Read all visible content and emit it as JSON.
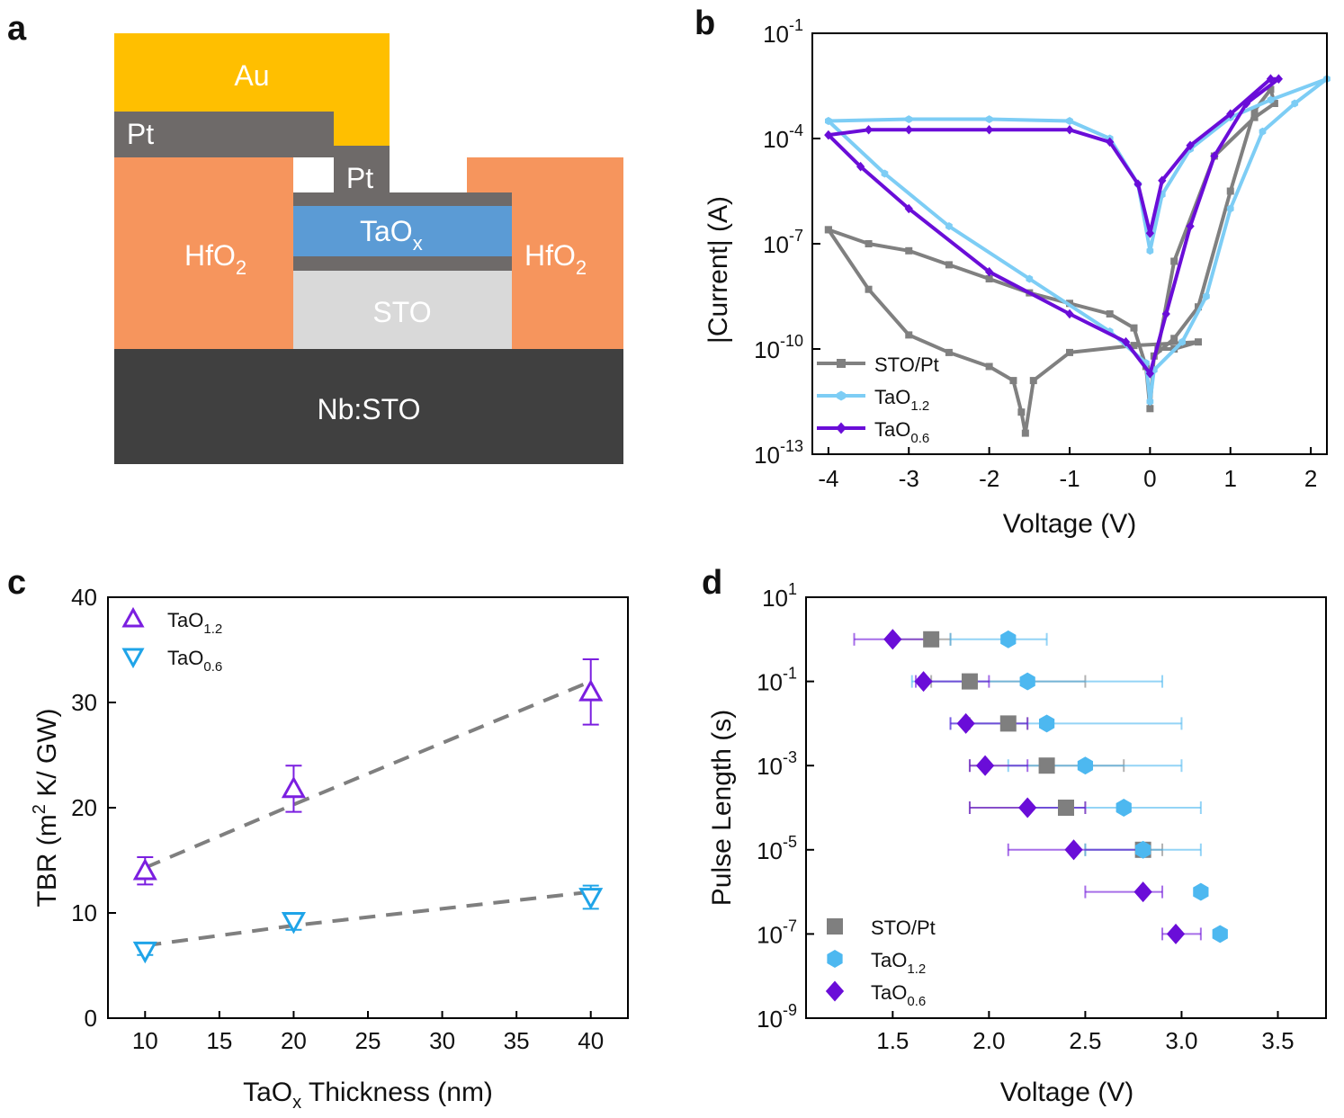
{
  "panel_labels": [
    "a",
    "b",
    "c",
    "d"
  ],
  "diagram": {
    "layers": {
      "au": "Au",
      "pt_top": "Pt",
      "pt_mid": "Pt",
      "hfo2_left": "HfO",
      "hfo2_right": "HfO",
      "hfo2_sub": "2",
      "taox": "TaO",
      "taox_sub": "x",
      "sto": "STO",
      "nbsto": "Nb:STO"
    },
    "colors": {
      "au": "#FFBF00",
      "pt": "#6E6A69",
      "hfo2": "#F6955D",
      "taox": "#5B9BD5",
      "sto": "#D9D9D9",
      "nbsto": "#404040"
    }
  },
  "chart_data": [
    {
      "id": "b",
      "type": "line",
      "xlabel": "Voltage (V)",
      "ylabel": "|Current| (A)",
      "xlim": [
        -4.2,
        2.2
      ],
      "ylim_log10": [
        -13,
        -1
      ],
      "xticks": [
        "-4",
        "-3",
        "-2",
        "-1",
        "0",
        "1",
        "2"
      ],
      "yticks": [
        {
          "base": "10",
          "exp": "-1"
        },
        {
          "base": "10",
          "exp": "-4"
        },
        {
          "base": "10",
          "exp": "-7"
        },
        {
          "base": "10",
          "exp": "-10"
        },
        {
          "base": "10",
          "exp": "-13"
        }
      ],
      "legend": [
        {
          "label": "STO/Pt",
          "sub": ""
        },
        {
          "label": "TaO",
          "sub": "1.2"
        },
        {
          "label": "TaO",
          "sub": "0.6"
        }
      ],
      "series": [
        {
          "name": "STO/Pt",
          "color": "#808080",
          "points": [
            [
              -4,
              -6.6
            ],
            [
              -3.5,
              -7.0
            ],
            [
              -3,
              -7.2
            ],
            [
              -2.5,
              -7.6
            ],
            [
              -2,
              -8.0
            ],
            [
              -1.5,
              -8.4
            ],
            [
              -1,
              -8.7
            ],
            [
              -0.5,
              -9.0
            ],
            [
              -0.2,
              -9.4
            ],
            [
              -0.05,
              -10.5
            ],
            [
              0,
              -11.7
            ],
            [
              0.05,
              -10.2
            ],
            [
              0.3,
              -9.7
            ],
            [
              0.6,
              -8.8
            ],
            [
              1.0,
              -5.5
            ],
            [
              1.3,
              -3.2
            ],
            [
              1.5,
              -2.6
            ],
            [
              1.55,
              -3.0
            ],
            [
              1.3,
              -3.4
            ],
            [
              0.8,
              -4.5
            ],
            [
              0.3,
              -7.5
            ],
            [
              0.1,
              -10.0
            ],
            [
              0.3,
              -10.0
            ],
            [
              0.6,
              -9.8
            ],
            [
              -0.2,
              -9.9
            ],
            [
              -1,
              -10.1
            ],
            [
              -1.45,
              -10.9
            ],
            [
              -1.55,
              -12.4
            ],
            [
              -1.6,
              -11.8
            ],
            [
              -1.7,
              -10.9
            ],
            [
              -2,
              -10.5
            ],
            [
              -2.5,
              -10.1
            ],
            [
              -3,
              -9.6
            ],
            [
              -3.5,
              -8.3
            ],
            [
              -4,
              -6.6
            ]
          ]
        },
        {
          "name": "TaO1.2",
          "color": "#7DCDF5",
          "points": [
            [
              -4,
              -3.5
            ],
            [
              -3,
              -3.45
            ],
            [
              -2,
              -3.45
            ],
            [
              -1,
              -3.5
            ],
            [
              -0.5,
              -4.0
            ],
            [
              -0.15,
              -5.3
            ],
            [
              0,
              -7.2
            ],
            [
              0.15,
              -5.6
            ],
            [
              0.5,
              -4.3
            ],
            [
              1,
              -3.4
            ],
            [
              1.5,
              -2.9
            ],
            [
              2.2,
              -2.3
            ],
            [
              1.8,
              -3.0
            ],
            [
              1.4,
              -3.8
            ],
            [
              1.0,
              -6.0
            ],
            [
              0.7,
              -8.5
            ],
            [
              0.4,
              -9.8
            ],
            [
              0.05,
              -10.6
            ],
            [
              0,
              -11.5
            ],
            [
              -0.05,
              -10.4
            ],
            [
              -0.5,
              -9.5
            ],
            [
              -1.5,
              -8.0
            ],
            [
              -2.5,
              -6.5
            ],
            [
              -3.3,
              -5.0
            ],
            [
              -4,
              -3.5
            ]
          ]
        },
        {
          "name": "TaO0.6",
          "color": "#6A0DD8",
          "points": [
            [
              -4,
              -3.9
            ],
            [
              -3.5,
              -3.75
            ],
            [
              -3,
              -3.75
            ],
            [
              -2,
              -3.75
            ],
            [
              -1,
              -3.75
            ],
            [
              -0.5,
              -4.1
            ],
            [
              -0.15,
              -5.3
            ],
            [
              0,
              -6.7
            ],
            [
              0.15,
              -5.2
            ],
            [
              0.5,
              -4.2
            ],
            [
              1,
              -3.3
            ],
            [
              1.5,
              -2.3
            ],
            [
              1.6,
              -2.3
            ],
            [
              1.2,
              -3.0
            ],
            [
              0.8,
              -4.5
            ],
            [
              0.5,
              -6.5
            ],
            [
              0.2,
              -9.0
            ],
            [
              0,
              -10.7
            ],
            [
              -0.3,
              -9.8
            ],
            [
              -1,
              -9.0
            ],
            [
              -2,
              -7.8
            ],
            [
              -3,
              -6.0
            ],
            [
              -3.6,
              -4.8
            ],
            [
              -4,
              -3.9
            ]
          ]
        }
      ]
    },
    {
      "id": "c",
      "type": "scatter",
      "xlabel": "TaO",
      "xlabel_sub": "x",
      "xlabel_rest": " Thickness (nm)",
      "ylabel": "TBR (m",
      "ylabel_sup": "2",
      "ylabel_rest": " K/ GW)",
      "xlim": [
        7.5,
        42.5
      ],
      "ylim": [
        0,
        40
      ],
      "xticks": [
        "10",
        "15",
        "20",
        "25",
        "30",
        "35",
        "40"
      ],
      "yticks": [
        "0",
        "10",
        "20",
        "30",
        "40"
      ],
      "legend": [
        {
          "label": "TaO",
          "sub": "1.2"
        },
        {
          "label": "TaO",
          "sub": "0.6"
        }
      ],
      "series": [
        {
          "name": "TaO1.2",
          "color": "#7B1FE0",
          "marker": "triangle-up",
          "x": [
            10,
            20,
            40
          ],
          "y": [
            14.0,
            21.8,
            31.0
          ],
          "err": [
            1.3,
            2.2,
            3.1
          ],
          "fit": [
            [
              10,
              14.3
            ],
            [
              20,
              20.3
            ],
            [
              40,
              32.0
            ]
          ]
        },
        {
          "name": "TaO0.6",
          "color": "#1FA4E8",
          "marker": "triangle-down",
          "x": [
            10,
            20,
            40
          ],
          "y": [
            6.4,
            9.2,
            11.5
          ],
          "err": [
            0.4,
            0.8,
            1.1
          ],
          "fit": [
            [
              10,
              6.9
            ],
            [
              20,
              8.8
            ],
            [
              40,
              12.0
            ]
          ]
        }
      ]
    },
    {
      "id": "d",
      "type": "scatter",
      "xlabel": "Voltage (V)",
      "ylabel": "Pulse Length (s)",
      "xlim": [
        1.05,
        3.75
      ],
      "ylim_log10": [
        -9,
        1
      ],
      "xticks": [
        "1.5",
        "2.0",
        "2.5",
        "3.0",
        "3.5"
      ],
      "yticks": [
        {
          "base": "10",
          "exp": "1"
        },
        {
          "base": "10",
          "exp": "-1"
        },
        {
          "base": "10",
          "exp": "-3"
        },
        {
          "base": "10",
          "exp": "-5"
        },
        {
          "base": "10",
          "exp": "-7"
        },
        {
          "base": "10",
          "exp": "-9"
        }
      ],
      "legend": [
        {
          "label": "STO/Pt",
          "sub": ""
        },
        {
          "label": "TaO",
          "sub": "1.2"
        },
        {
          "label": "TaO",
          "sub": "0.6"
        }
      ],
      "series": [
        {
          "name": "STO/Pt",
          "color": "#7F7F7F",
          "marker": "square",
          "points": [
            [
              1.7,
              0,
              1.5,
              1.8
            ],
            [
              1.9,
              -1,
              1.7,
              2.5
            ],
            [
              2.1,
              -2,
              1.9,
              2.2
            ],
            [
              2.3,
              -3,
              1.9,
              2.7
            ],
            [
              2.4,
              -4,
              1.9,
              2.5
            ],
            [
              2.8,
              -5,
              2.5,
              2.9
            ]
          ]
        },
        {
          "name": "TaO1.2",
          "color": "#4DB8F0",
          "marker": "hexagon",
          "points": [
            [
              2.1,
              0,
              1.8,
              2.3
            ],
            [
              2.2,
              -1,
              1.6,
              2.9
            ],
            [
              2.3,
              -2,
              1.8,
              3.0
            ],
            [
              2.5,
              -3,
              2.1,
              3.0
            ],
            [
              2.7,
              -4,
              2.2,
              3.1
            ],
            [
              2.8,
              -5,
              2.5,
              3.1
            ],
            [
              3.1,
              -6,
              3.1,
              3.1
            ],
            [
              3.2,
              -7,
              3.2,
              3.2
            ]
          ]
        },
        {
          "name": "TaO0.6",
          "color": "#6A0DD8",
          "marker": "diamond",
          "points": [
            [
              1.5,
              0,
              1.3,
              1.7
            ],
            [
              1.66,
              -1,
              1.62,
              2.0
            ],
            [
              1.88,
              -2,
              1.8,
              2.2
            ],
            [
              1.98,
              -3,
              1.9,
              2.2
            ],
            [
              2.2,
              -4,
              1.9,
              2.5
            ],
            [
              2.44,
              -5,
              2.1,
              2.8
            ],
            [
              2.8,
              -6,
              2.5,
              2.9
            ],
            [
              2.97,
              -7,
              2.9,
              3.1
            ]
          ]
        }
      ]
    }
  ]
}
